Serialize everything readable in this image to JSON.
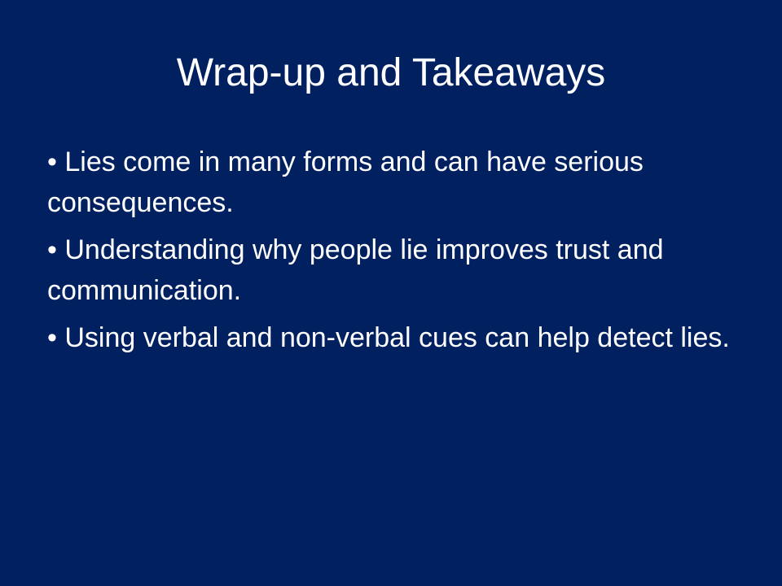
{
  "slide": {
    "title": "Wrap-up and Takeaways",
    "bullets": [
      "• Lies come in many forms and can have serious consequences.",
      "• Understanding why people lie improves trust and communication.",
      "• Using verbal and non-verbal cues can help detect lies."
    ],
    "background_color": "#002060",
    "text_color": "#ffffff"
  }
}
